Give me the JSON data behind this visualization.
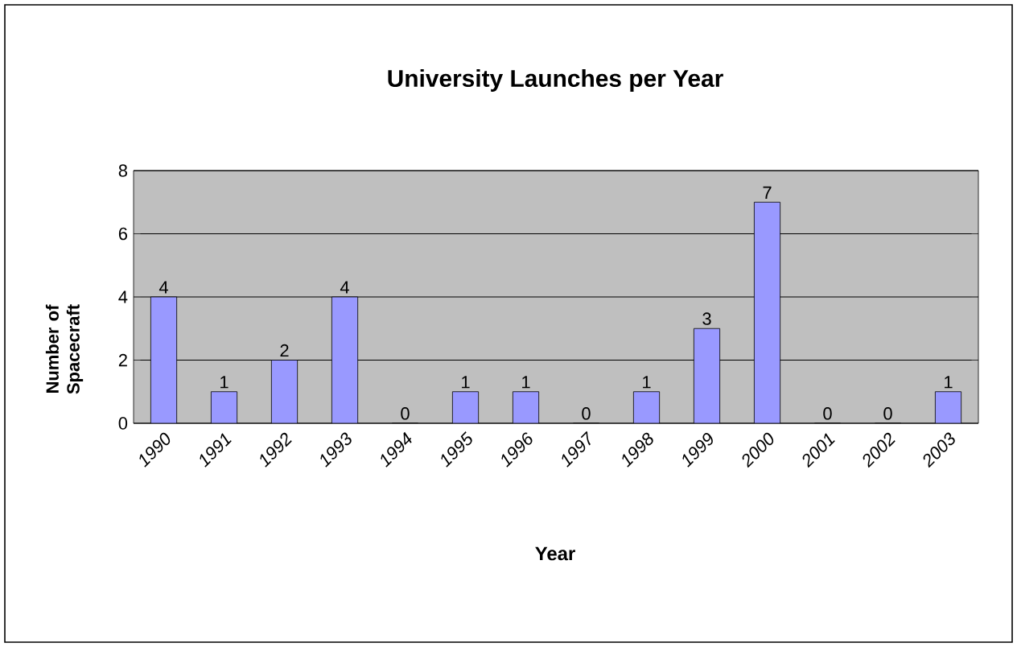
{
  "chart_data": {
    "type": "bar",
    "title": "University Launches per Year",
    "xlabel": "Year",
    "ylabel": "Number of Spacecraft",
    "categories": [
      "1990",
      "1991",
      "1992",
      "1993",
      "1994",
      "1995",
      "1996",
      "1997",
      "1998",
      "1999",
      "2000",
      "2001",
      "2002",
      "2003"
    ],
    "values": [
      4,
      1,
      2,
      4,
      0,
      1,
      1,
      0,
      1,
      3,
      7,
      0,
      0,
      1
    ],
    "color": "#9999ff",
    "ylim": [
      0,
      8
    ],
    "yticks": [
      0,
      2,
      4,
      6,
      8
    ],
    "grid": "y",
    "data_labels": true
  }
}
